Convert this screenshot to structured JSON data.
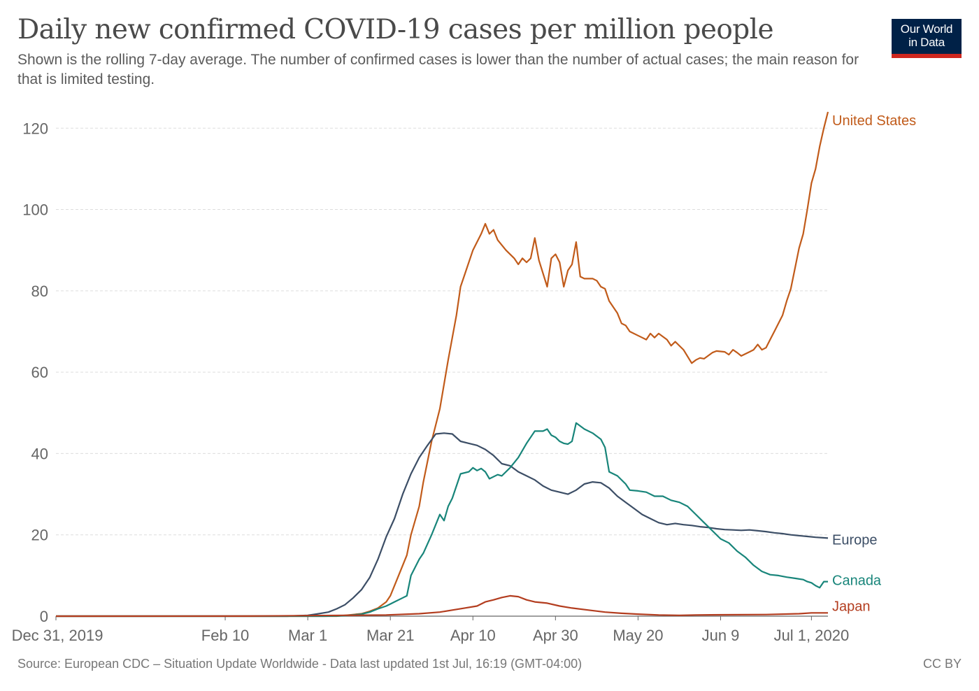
{
  "header": {
    "title": "Daily new confirmed COVID-19 cases per million people",
    "subtitle": "Shown is the rolling 7-day average. The number of confirmed cases is lower than the number of actual cases; the main reason for that is limited testing.",
    "logo_line1": "Our World",
    "logo_line2": "in Data"
  },
  "footer": {
    "source": "Source: European CDC – Situation Update Worldwide - Data last updated 1st Jul, 16:19 (GMT-04:00)",
    "license": "CC BY"
  },
  "colors": {
    "logo_bg": "#002147",
    "logo_bar": "#ce261e",
    "grid": "#dddddd"
  },
  "chart_data": {
    "type": "line",
    "title": "Daily new confirmed COVID-19 cases per million people",
    "ylabel": "",
    "xlabel": "",
    "ylim": [
      0,
      124
    ],
    "y_ticks": [
      0,
      20,
      40,
      60,
      80,
      100,
      120
    ],
    "grid": true,
    "legend": "line-end labels at right",
    "x_range": [
      "2019-12-31",
      "2020-07-01"
    ],
    "x_ticks": [
      {
        "date": "2019-12-31",
        "label": "Dec 31, 2019"
      },
      {
        "date": "2020-02-10",
        "label": "Feb 10"
      },
      {
        "date": "2020-03-01",
        "label": "Mar 1"
      },
      {
        "date": "2020-03-21",
        "label": "Mar 21"
      },
      {
        "date": "2020-04-10",
        "label": "Apr 10"
      },
      {
        "date": "2020-04-30",
        "label": "Apr 30"
      },
      {
        "date": "2020-05-20",
        "label": "May 20"
      },
      {
        "date": "2020-06-09",
        "label": "Jun 9"
      },
      {
        "date": "2020-07-01",
        "label": "Jul 1, 2020"
      }
    ],
    "series": [
      {
        "name": "United States",
        "color": "#c15b1a",
        "points": [
          [
            "2019-12-31",
            0
          ],
          [
            "2020-03-08",
            0
          ],
          [
            "2020-03-11",
            0.3
          ],
          [
            "2020-03-14",
            0.6
          ],
          [
            "2020-03-16",
            1.2
          ],
          [
            "2020-03-18",
            2
          ],
          [
            "2020-03-20",
            3.5
          ],
          [
            "2020-03-21",
            5
          ],
          [
            "2020-03-23",
            10
          ],
          [
            "2020-03-25",
            15
          ],
          [
            "2020-03-26",
            20
          ],
          [
            "2020-03-28",
            27
          ],
          [
            "2020-03-29",
            33
          ],
          [
            "2020-03-31",
            43
          ],
          [
            "2020-04-02",
            51
          ],
          [
            "2020-04-04",
            63
          ],
          [
            "2020-04-06",
            74
          ],
          [
            "2020-04-07",
            81
          ],
          [
            "2020-04-08",
            84
          ],
          [
            "2020-04-10",
            90
          ],
          [
            "2020-04-12",
            94
          ],
          [
            "2020-04-13",
            96.5
          ],
          [
            "2020-04-14",
            94
          ],
          [
            "2020-04-15",
            95
          ],
          [
            "2020-04-16",
            92.5
          ],
          [
            "2020-04-18",
            90
          ],
          [
            "2020-04-20",
            88
          ],
          [
            "2020-04-21",
            86.5
          ],
          [
            "2020-04-22",
            88
          ],
          [
            "2020-04-23",
            87
          ],
          [
            "2020-04-24",
            88
          ],
          [
            "2020-04-25",
            93
          ],
          [
            "2020-04-26",
            87.5
          ],
          [
            "2020-04-28",
            81
          ],
          [
            "2020-04-29",
            88
          ],
          [
            "2020-04-30",
            89
          ],
          [
            "2020-05-01",
            87
          ],
          [
            "2020-05-02",
            81
          ],
          [
            "2020-05-03",
            85
          ],
          [
            "2020-05-04",
            86.5
          ],
          [
            "2020-05-05",
            92
          ],
          [
            "2020-05-06",
            83.5
          ],
          [
            "2020-05-07",
            83
          ],
          [
            "2020-05-09",
            83
          ],
          [
            "2020-05-10",
            82.5
          ],
          [
            "2020-05-11",
            81
          ],
          [
            "2020-05-12",
            80.5
          ],
          [
            "2020-05-13",
            77.5
          ],
          [
            "2020-05-15",
            74.5
          ],
          [
            "2020-05-16",
            72
          ],
          [
            "2020-05-17",
            71.5
          ],
          [
            "2020-05-18",
            70
          ],
          [
            "2020-05-20",
            69
          ],
          [
            "2020-05-21",
            68.5
          ],
          [
            "2020-05-22",
            68
          ],
          [
            "2020-05-23",
            69.5
          ],
          [
            "2020-05-24",
            68.5
          ],
          [
            "2020-05-25",
            69.5
          ],
          [
            "2020-05-27",
            68
          ],
          [
            "2020-05-28",
            66.5
          ],
          [
            "2020-05-29",
            67.5
          ],
          [
            "2020-05-31",
            65.5
          ],
          [
            "2020-06-02",
            62.2
          ],
          [
            "2020-06-03",
            63
          ],
          [
            "2020-06-04",
            63.5
          ],
          [
            "2020-06-05",
            63.3
          ],
          [
            "2020-06-07",
            64.8
          ],
          [
            "2020-06-08",
            65.2
          ],
          [
            "2020-06-10",
            65
          ],
          [
            "2020-06-11",
            64.3
          ],
          [
            "2020-06-12",
            65.5
          ],
          [
            "2020-06-13",
            64.8
          ],
          [
            "2020-06-14",
            64
          ],
          [
            "2020-06-16",
            65
          ],
          [
            "2020-06-17",
            65.5
          ],
          [
            "2020-06-18",
            66.8
          ],
          [
            "2020-06-19",
            65.5
          ],
          [
            "2020-06-20",
            66
          ],
          [
            "2020-06-21",
            68
          ],
          [
            "2020-06-22",
            70
          ],
          [
            "2020-06-23",
            72
          ],
          [
            "2020-06-24",
            74
          ],
          [
            "2020-06-25",
            77.5
          ],
          [
            "2020-06-26",
            80.5
          ],
          [
            "2020-06-27",
            85.5
          ],
          [
            "2020-06-28",
            90.5
          ],
          [
            "2020-06-29",
            94
          ],
          [
            "2020-06-30",
            100
          ],
          [
            "2020-07-01",
            106.5
          ],
          [
            "2020-07-02",
            110
          ],
          [
            "2020-07-03",
            115.5
          ],
          [
            "2020-07-04",
            120
          ],
          [
            "2020-07-05",
            124
          ]
        ]
      },
      {
        "name": "Europe",
        "color": "#3c4e66",
        "points": [
          [
            "2019-12-31",
            0
          ],
          [
            "2020-02-25",
            0
          ],
          [
            "2020-03-01",
            0.2
          ],
          [
            "2020-03-03",
            0.5
          ],
          [
            "2020-03-06",
            1
          ],
          [
            "2020-03-08",
            1.8
          ],
          [
            "2020-03-10",
            2.8
          ],
          [
            "2020-03-12",
            4.5
          ],
          [
            "2020-03-14",
            6.5
          ],
          [
            "2020-03-16",
            9.5
          ],
          [
            "2020-03-18",
            14
          ],
          [
            "2020-03-20",
            19.5
          ],
          [
            "2020-03-22",
            24
          ],
          [
            "2020-03-24",
            30
          ],
          [
            "2020-03-26",
            35
          ],
          [
            "2020-03-28",
            39
          ],
          [
            "2020-03-30",
            42
          ],
          [
            "2020-04-01",
            44.8
          ],
          [
            "2020-04-03",
            45
          ],
          [
            "2020-04-05",
            44.8
          ],
          [
            "2020-04-07",
            43
          ],
          [
            "2020-04-09",
            42.5
          ],
          [
            "2020-04-11",
            42
          ],
          [
            "2020-04-13",
            41
          ],
          [
            "2020-04-15",
            39.5
          ],
          [
            "2020-04-17",
            37.5
          ],
          [
            "2020-04-19",
            37
          ],
          [
            "2020-04-21",
            35.5
          ],
          [
            "2020-04-23",
            34.5
          ],
          [
            "2020-04-25",
            33.5
          ],
          [
            "2020-04-27",
            32
          ],
          [
            "2020-04-29",
            31
          ],
          [
            "2020-05-01",
            30.5
          ],
          [
            "2020-05-03",
            30
          ],
          [
            "2020-05-05",
            31
          ],
          [
            "2020-05-07",
            32.5
          ],
          [
            "2020-05-09",
            33
          ],
          [
            "2020-05-11",
            32.8
          ],
          [
            "2020-05-13",
            31.5
          ],
          [
            "2020-05-15",
            29.5
          ],
          [
            "2020-05-17",
            28
          ],
          [
            "2020-05-19",
            26.5
          ],
          [
            "2020-05-21",
            25
          ],
          [
            "2020-05-23",
            24
          ],
          [
            "2020-05-25",
            23
          ],
          [
            "2020-05-27",
            22.5
          ],
          [
            "2020-05-29",
            22.8
          ],
          [
            "2020-05-31",
            22.5
          ],
          [
            "2020-06-02",
            22.3
          ],
          [
            "2020-06-04",
            22
          ],
          [
            "2020-06-06",
            21.8
          ],
          [
            "2020-06-08",
            21.5
          ],
          [
            "2020-06-10",
            21.3
          ],
          [
            "2020-06-12",
            21.2
          ],
          [
            "2020-06-14",
            21.1
          ],
          [
            "2020-06-16",
            21.2
          ],
          [
            "2020-06-18",
            21
          ],
          [
            "2020-06-20",
            20.8
          ],
          [
            "2020-06-22",
            20.5
          ],
          [
            "2020-06-24",
            20.3
          ],
          [
            "2020-06-26",
            20
          ],
          [
            "2020-06-28",
            19.8
          ],
          [
            "2020-06-30",
            19.6
          ],
          [
            "2020-07-02",
            19.4
          ],
          [
            "2020-07-05",
            19.2
          ]
        ]
      },
      {
        "name": "Canada",
        "color": "#18857a",
        "points": [
          [
            "2019-12-31",
            0
          ],
          [
            "2020-03-05",
            0
          ],
          [
            "2020-03-10",
            0.1
          ],
          [
            "2020-03-14",
            0.5
          ],
          [
            "2020-03-16",
            1
          ],
          [
            "2020-03-18",
            1.8
          ],
          [
            "2020-03-20",
            2.5
          ],
          [
            "2020-03-21",
            3
          ],
          [
            "2020-03-22",
            3.5
          ],
          [
            "2020-03-24",
            4.5
          ],
          [
            "2020-03-25",
            5
          ],
          [
            "2020-03-26",
            10
          ],
          [
            "2020-03-28",
            14
          ],
          [
            "2020-03-29",
            15.5
          ],
          [
            "2020-03-31",
            20
          ],
          [
            "2020-04-02",
            25
          ],
          [
            "2020-04-03",
            23.5
          ],
          [
            "2020-04-04",
            27
          ],
          [
            "2020-04-05",
            29
          ],
          [
            "2020-04-07",
            35
          ],
          [
            "2020-04-09",
            35.5
          ],
          [
            "2020-04-10",
            36.5
          ],
          [
            "2020-04-11",
            35.8
          ],
          [
            "2020-04-12",
            36.3
          ],
          [
            "2020-04-13",
            35.5
          ],
          [
            "2020-04-14",
            33.8
          ],
          [
            "2020-04-16",
            34.8
          ],
          [
            "2020-04-17",
            34.5
          ],
          [
            "2020-04-19",
            36.5
          ],
          [
            "2020-04-21",
            39
          ],
          [
            "2020-04-23",
            42.5
          ],
          [
            "2020-04-25",
            45.5
          ],
          [
            "2020-04-27",
            45.5
          ],
          [
            "2020-04-28",
            46
          ],
          [
            "2020-04-29",
            44.5
          ],
          [
            "2020-04-30",
            44
          ],
          [
            "2020-05-01",
            43
          ],
          [
            "2020-05-02",
            42.5
          ],
          [
            "2020-05-03",
            42.3
          ],
          [
            "2020-05-04",
            43
          ],
          [
            "2020-05-05",
            47.5
          ],
          [
            "2020-05-07",
            46
          ],
          [
            "2020-05-09",
            45
          ],
          [
            "2020-05-11",
            43.5
          ],
          [
            "2020-05-12",
            41.5
          ],
          [
            "2020-05-13",
            35.5
          ],
          [
            "2020-05-15",
            34.5
          ],
          [
            "2020-05-17",
            32.5
          ],
          [
            "2020-05-18",
            31
          ],
          [
            "2020-05-20",
            30.8
          ],
          [
            "2020-05-22",
            30.5
          ],
          [
            "2020-05-24",
            29.5
          ],
          [
            "2020-05-26",
            29.5
          ],
          [
            "2020-05-28",
            28.5
          ],
          [
            "2020-05-30",
            28
          ],
          [
            "2020-06-01",
            27
          ],
          [
            "2020-06-03",
            25
          ],
          [
            "2020-06-05",
            23
          ],
          [
            "2020-06-07",
            21
          ],
          [
            "2020-06-09",
            19
          ],
          [
            "2020-06-11",
            18
          ],
          [
            "2020-06-13",
            16
          ],
          [
            "2020-06-15",
            14.5
          ],
          [
            "2020-06-17",
            12.5
          ],
          [
            "2020-06-19",
            11
          ],
          [
            "2020-06-21",
            10.2
          ],
          [
            "2020-06-23",
            10
          ],
          [
            "2020-06-25",
            9.6
          ],
          [
            "2020-06-27",
            9.3
          ],
          [
            "2020-06-29",
            9
          ],
          [
            "2020-06-30",
            8.5
          ],
          [
            "2020-07-01",
            8.2
          ],
          [
            "2020-07-02",
            7.5
          ],
          [
            "2020-07-03",
            7
          ],
          [
            "2020-07-04",
            8.5
          ],
          [
            "2020-07-05",
            8.5
          ]
        ]
      },
      {
        "name": "Japan",
        "color": "#b33d1f",
        "points": [
          [
            "2019-12-31",
            0
          ],
          [
            "2020-02-15",
            0.02
          ],
          [
            "2020-03-10",
            0.2
          ],
          [
            "2020-03-20",
            0.3
          ],
          [
            "2020-03-28",
            0.6
          ],
          [
            "2020-04-02",
            1
          ],
          [
            "2020-04-05",
            1.5
          ],
          [
            "2020-04-08",
            2
          ],
          [
            "2020-04-11",
            2.5
          ],
          [
            "2020-04-13",
            3.5
          ],
          [
            "2020-04-15",
            4
          ],
          [
            "2020-04-17",
            4.6
          ],
          [
            "2020-04-19",
            5
          ],
          [
            "2020-04-21",
            4.8
          ],
          [
            "2020-04-23",
            4
          ],
          [
            "2020-04-25",
            3.5
          ],
          [
            "2020-04-28",
            3.2
          ],
          [
            "2020-05-01",
            2.5
          ],
          [
            "2020-05-04",
            2
          ],
          [
            "2020-05-08",
            1.5
          ],
          [
            "2020-05-12",
            1
          ],
          [
            "2020-05-16",
            0.7
          ],
          [
            "2020-05-20",
            0.5
          ],
          [
            "2020-05-25",
            0.3
          ],
          [
            "2020-05-30",
            0.2
          ],
          [
            "2020-06-03",
            0.3
          ],
          [
            "2020-06-10",
            0.35
          ],
          [
            "2020-06-20",
            0.4
          ],
          [
            "2020-06-28",
            0.6
          ],
          [
            "2020-07-01",
            0.8
          ],
          [
            "2020-07-05",
            0.8
          ]
        ]
      }
    ]
  }
}
